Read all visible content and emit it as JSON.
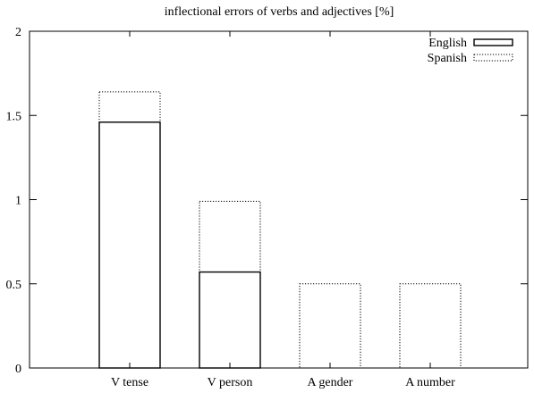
{
  "chart_data": {
    "type": "bar",
    "title": "inflectional errors of verbs and adjectives [%]",
    "xlabel": "",
    "ylabel": "",
    "categories": [
      "V tense",
      "V person",
      "A gender",
      "A number"
    ],
    "series": [
      {
        "name": "English",
        "values": [
          1.46,
          0.57,
          0,
          0
        ],
        "line_style": "solid"
      },
      {
        "name": "Spanish",
        "values": [
          1.64,
          0.99,
          0.5,
          0.5
        ],
        "line_style": "dotted"
      }
    ],
    "bar_layout": "overlaid",
    "ylim": [
      0,
      2
    ],
    "yticks": [
      {
        "value": 0,
        "label": "0"
      },
      {
        "value": 0.5,
        "label": "0.5"
      },
      {
        "value": 1,
        "label": "1"
      },
      {
        "value": 1.5,
        "label": "1.5"
      },
      {
        "value": 2,
        "label": "2"
      }
    ],
    "grid": false,
    "legend_position": "top-right",
    "colors": {
      "stroke": "#000000",
      "background": "#ffffff"
    }
  }
}
